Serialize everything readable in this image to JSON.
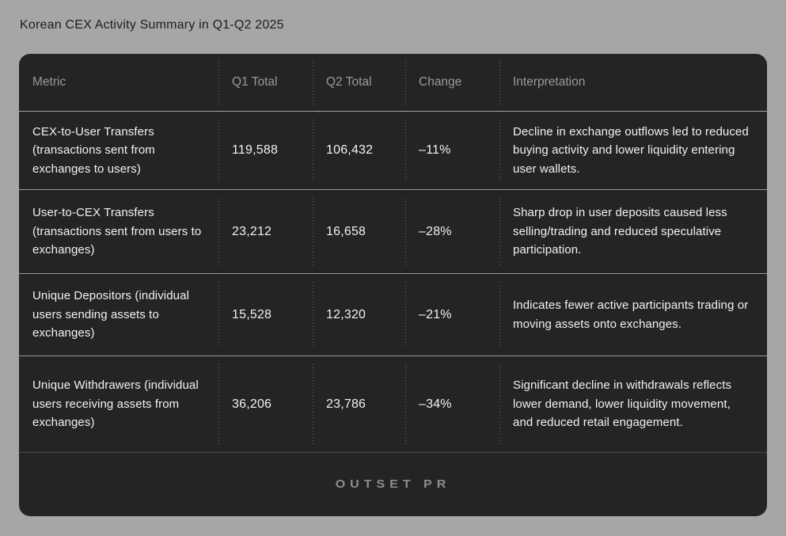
{
  "page": {
    "title": "Korean CEX Activity Summary in Q1-Q2 2025",
    "background_color": "#a6a6a6"
  },
  "table": {
    "background_color": "#242424",
    "header_text_color": "#9a9a9a",
    "body_text_color": "#f2f2f2",
    "columns": {
      "metric": "Metric",
      "q1": "Q1 Total",
      "q2": "Q2 Total",
      "change": "Change",
      "interpretation": "Interpretation"
    },
    "rows": [
      {
        "metric": "CEX-to-User Transfers (transactions sent from exchanges to users)",
        "q1": "119,588",
        "q2": "106,432",
        "change": "–11%",
        "interpretation": "Decline in exchange outflows led to reduced buying activity and lower liquidity entering user wallets."
      },
      {
        "metric": "User-to-CEX Transfers (transactions sent from users to exchanges)",
        "q1": "23,212",
        "q2": "16,658",
        "change": "–28%",
        "interpretation": "Sharp drop in user deposits caused less selling/trading and reduced speculative participation."
      },
      {
        "metric": "Unique Depositors (individual users sending assets to exchanges)",
        "q1": "15,528",
        "q2": "12,320",
        "change": "–21%",
        "interpretation": "Indicates fewer active participants trading or moving assets onto exchanges."
      },
      {
        "metric": "Unique Withdrawers (individual users receiving assets from exchanges)",
        "q1": "36,206",
        "q2": "23,786",
        "change": "–34%",
        "interpretation": "Significant decline in withdrawals reflects lower demand, lower liquidity movement, and reduced retail engagement."
      }
    ]
  },
  "footer": {
    "logo_text": "OUTSET PR"
  },
  "chart_data": {
    "type": "table",
    "title": "Korean CEX Activity Summary in Q1-Q2 2025",
    "columns": [
      "Metric",
      "Q1 Total",
      "Q2 Total",
      "Change",
      "Interpretation"
    ],
    "rows": [
      [
        "CEX-to-User Transfers (transactions sent from exchanges to users)",
        119588,
        106432,
        -11,
        "Decline in exchange outflows led to reduced buying activity and lower liquidity entering user wallets."
      ],
      [
        "User-to-CEX Transfers (transactions sent from users to exchanges)",
        23212,
        16658,
        -28,
        "Sharp drop in user deposits caused less selling/trading and reduced speculative participation."
      ],
      [
        "Unique Depositors (individual users sending assets to exchanges)",
        15528,
        12320,
        -21,
        "Indicates fewer active participants trading or moving assets onto exchanges."
      ],
      [
        "Unique Withdrawers (individual users receiving assets from exchanges)",
        36206,
        23786,
        -34,
        "Significant decline in withdrawals reflects lower demand, lower liquidity movement, and reduced retail engagement."
      ]
    ],
    "change_unit": "percent"
  }
}
